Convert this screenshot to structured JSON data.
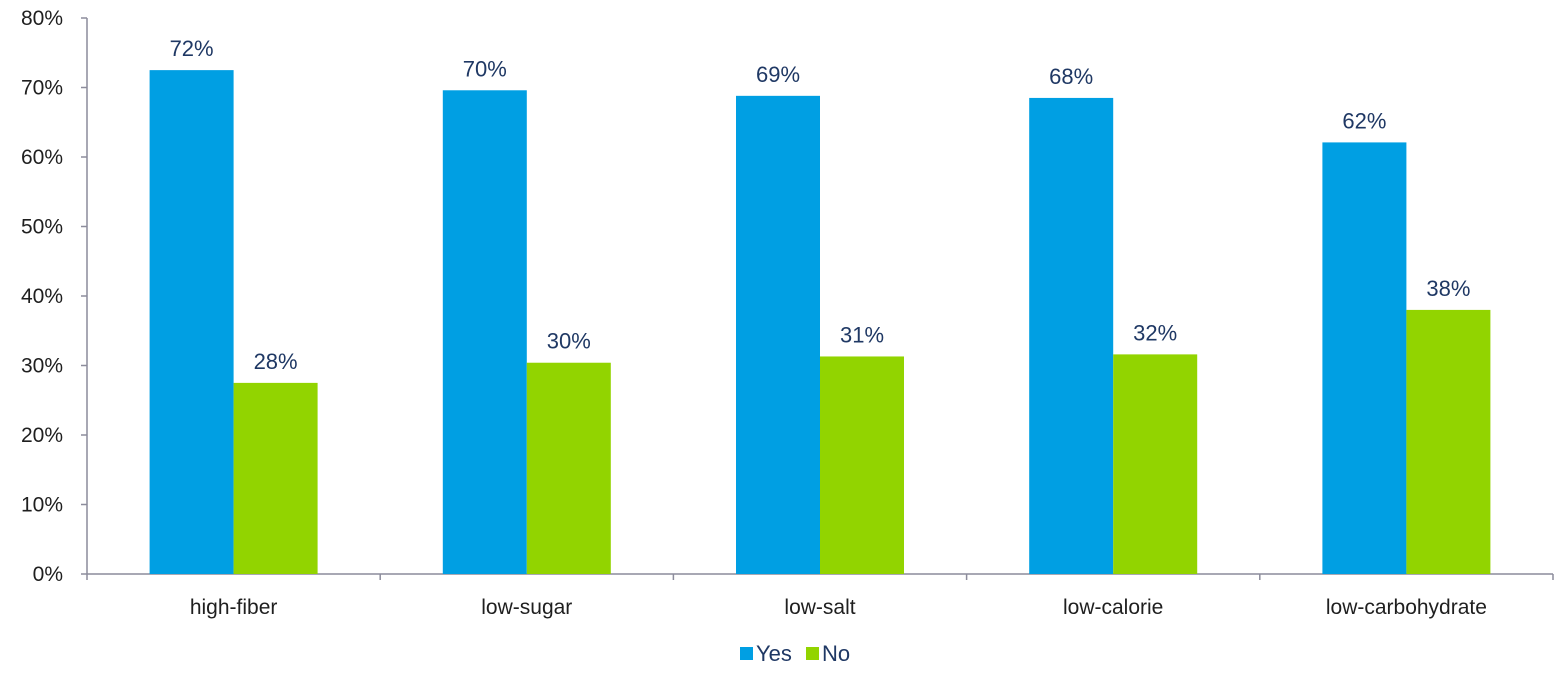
{
  "chart_data": {
    "type": "bar",
    "title": "",
    "xlabel": "",
    "ylabel": "",
    "categories": [
      "high-fiber",
      "low-sugar",
      "low-salt",
      "low-calorie",
      "low-carbohydrate"
    ],
    "series": [
      {
        "name": "Yes",
        "color": "#009fe3",
        "values": [
          72.5,
          69.6,
          68.8,
          68.5,
          62.1
        ],
        "labels": [
          "72%",
          "70%",
          "69%",
          "68%",
          "62%"
        ]
      },
      {
        "name": "No",
        "color": "#92d400",
        "values": [
          27.5,
          30.4,
          31.3,
          31.6,
          38.0
        ],
        "labels": [
          "28%",
          "30%",
          "31%",
          "32%",
          "38%"
        ]
      }
    ],
    "ylim": [
      0,
      80
    ],
    "yticks": [
      "0%",
      "10%",
      "20%",
      "30%",
      "40%",
      "50%",
      "60%",
      "70%",
      "80%"
    ],
    "grid": false,
    "legend_position": "bottom-center",
    "axis_color": "#8c8c9c"
  }
}
